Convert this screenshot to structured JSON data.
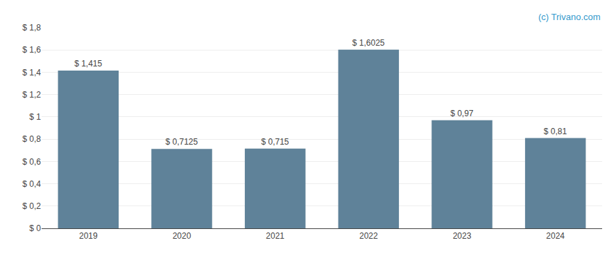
{
  "chart_data": {
    "type": "bar",
    "categories": [
      "2019",
      "2020",
      "2021",
      "2022",
      "2023",
      "2024"
    ],
    "values": [
      1.415,
      0.7125,
      0.715,
      1.6025,
      0.97,
      0.81
    ],
    "value_labels": [
      "$ 1,415",
      "$ 0,7125",
      "$ 0,715",
      "$ 1,6025",
      "$ 0,97",
      "$ 0,81"
    ],
    "data_labels": true,
    "color": "#5f8299",
    "ylim": [
      0,
      1.8
    ],
    "yticks": [
      {
        "value": 0,
        "label": "$ 0"
      },
      {
        "value": 0.2,
        "label": "$ 0,2"
      },
      {
        "value": 0.4,
        "label": "$ 0,4"
      },
      {
        "value": 0.6,
        "label": "$ 0,6"
      },
      {
        "value": 0.8,
        "label": "$ 0,8"
      },
      {
        "value": 1.0,
        "label": "$ 1"
      },
      {
        "value": 1.2,
        "label": "$ 1,2"
      },
      {
        "value": 1.4,
        "label": "$ 1,4"
      },
      {
        "value": 1.6,
        "label": "$ 1,6"
      },
      {
        "value": 1.8,
        "label": "$ 1,8"
      }
    ],
    "grid": true,
    "annotations": [
      "(c) Trivano.com"
    ]
  }
}
